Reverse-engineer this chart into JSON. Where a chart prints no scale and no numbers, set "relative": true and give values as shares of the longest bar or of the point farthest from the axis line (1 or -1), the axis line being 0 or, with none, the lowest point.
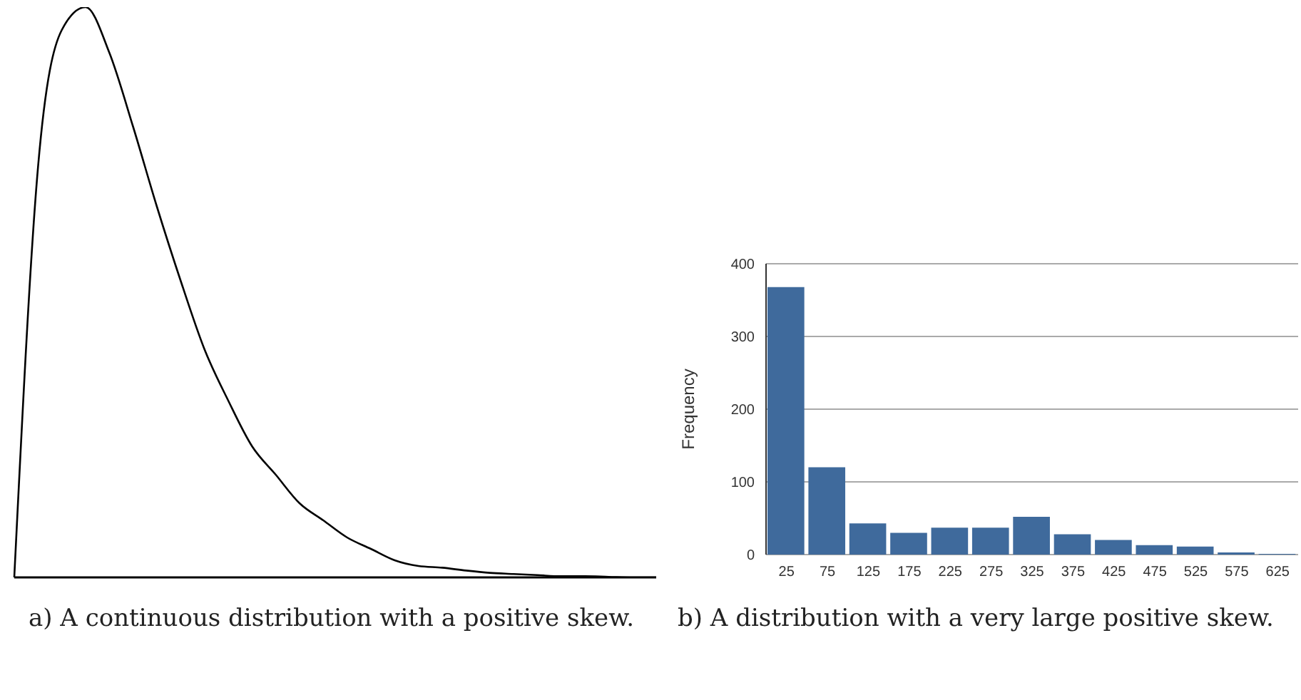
{
  "chart_data": [
    {
      "type": "line",
      "relative": true,
      "categories": [
        null,
        null,
        null,
        null,
        null,
        null,
        null,
        null,
        null,
        null,
        null,
        null,
        null,
        null,
        null,
        null,
        null,
        null,
        null,
        null,
        null,
        null,
        null,
        null,
        null,
        null,
        null,
        null
      ],
      "series": [
        {
          "color": "#000000",
          "values": [
            0,
            0.72,
            0.96,
            1.0,
            0.92,
            0.79,
            0.65,
            0.52,
            0.4,
            0.31,
            0.23,
            0.18,
            0.13,
            0.1,
            0.07,
            0.05,
            0.03,
            0.02,
            0.017,
            0.012,
            0.008,
            0.006,
            0.004,
            0.002,
            0.002,
            0.001,
            0,
            0
          ]
        }
      ],
      "marker": "none",
      "annotations": [
        "a) A continuous distribution with a positive skew."
      ]
    },
    {
      "type": "histogram",
      "bins": [
        0,
        50,
        100,
        150,
        200,
        250,
        300,
        350,
        400,
        450,
        500,
        550,
        600,
        650
      ],
      "values": [
        368,
        120,
        43,
        30,
        37,
        37,
        52,
        28,
        20,
        13,
        11,
        3,
        1
      ],
      "color": "#3f6a9c",
      "ylabel": "Frequency",
      "xlim": [
        0,
        650
      ],
      "xticks": [
        25,
        75,
        125,
        175,
        225,
        275,
        325,
        375,
        425,
        475,
        525,
        575,
        625
      ],
      "ylim": [
        0,
        400
      ],
      "yticks": [
        0,
        100,
        200,
        300,
        400
      ],
      "grid": "y",
      "annotations": [
        "b) A distribution with a very large positive skew."
      ]
    }
  ]
}
